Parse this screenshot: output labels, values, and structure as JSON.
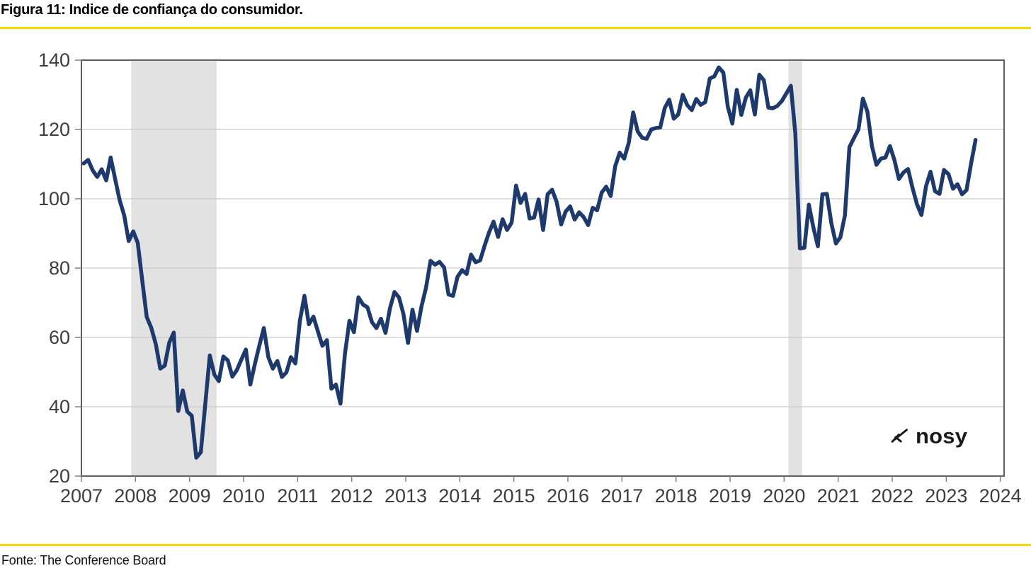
{
  "header": {
    "title": "Figura 11: Indice de confiança do consumidor."
  },
  "footer": {
    "source": "Fonte: The Conference Board"
  },
  "watermark": {
    "text": "nosy"
  },
  "colors": {
    "accent_yellow": "#ffd700",
    "line": "#1e3a6d",
    "recession_band": "#e2e2e2",
    "grid": "#c9c9c9",
    "plot_border": "#5f5f5f",
    "tick": "#7f7f7f",
    "axis_label": "#3d3d3d",
    "logo": "#191919"
  },
  "chart_data": {
    "type": "line",
    "title": "Figura 11: Indice de confiança do consumidor.",
    "source": "Fonte: The Conference Board",
    "xlabel": "",
    "ylabel": "",
    "ylim": [
      20,
      140
    ],
    "y_ticks": [
      20,
      40,
      60,
      80,
      100,
      120,
      140
    ],
    "x_ticks": [
      2007,
      2008,
      2009,
      2010,
      2011,
      2012,
      2013,
      2014,
      2015,
      2016,
      2017,
      2018,
      2019,
      2020,
      2021,
      2022,
      2023,
      2024
    ],
    "xlim": [
      2007,
      2024.07
    ],
    "grid": true,
    "legend_position": "none",
    "recession_bands": [
      {
        "from": 2007.92,
        "to": 2009.5
      },
      {
        "from": 2020.08,
        "to": 2020.33
      }
    ],
    "series": [
      {
        "name": "Indice de confiança do consumidor (The Conference Board)",
        "frequency": "monthly",
        "start_year": 2007,
        "start_month": 1,
        "values": [
          110.2,
          111.2,
          108.2,
          106.3,
          108.5,
          105.3,
          111.9,
          105.6,
          99.5,
          95.2,
          87.8,
          90.6,
          87.3,
          76.4,
          65.9,
          62.8,
          58.1,
          51.0,
          51.9,
          58.5,
          61.4,
          38.8,
          44.7,
          38.6,
          37.4,
          25.3,
          26.9,
          40.8,
          54.8,
          49.3,
          47.4,
          54.5,
          53.4,
          48.7,
          50.6,
          53.6,
          56.5,
          46.4,
          52.3,
          57.7,
          62.7,
          54.3,
          51.0,
          53.2,
          48.6,
          49.9,
          54.3,
          52.5,
          64.8,
          72.0,
          63.8,
          66.0,
          61.7,
          57.6,
          59.2,
          45.2,
          46.4,
          40.9,
          55.2,
          64.8,
          61.5,
          71.6,
          69.5,
          68.7,
          64.4,
          62.7,
          65.4,
          61.3,
          68.4,
          73.1,
          71.5,
          66.7,
          58.4,
          68.0,
          61.9,
          69.0,
          74.3,
          82.1,
          81.0,
          81.8,
          80.2,
          72.4,
          72.0,
          77.5,
          79.4,
          78.3,
          83.9,
          81.7,
          82.2,
          86.4,
          90.3,
          93.4,
          89.0,
          94.1,
          91.0,
          93.1,
          103.8,
          98.8,
          101.4,
          94.3,
          94.6,
          99.8,
          91.0,
          101.3,
          102.6,
          99.1,
          92.6,
          96.3,
          97.8,
          94.0,
          96.1,
          94.7,
          92.4,
          97.4,
          96.7,
          101.8,
          103.5,
          100.8,
          109.4,
          113.3,
          111.6,
          116.1,
          124.9,
          119.4,
          117.6,
          117.3,
          120.0,
          120.4,
          120.6,
          126.2,
          128.6,
          123.1,
          124.3,
          130.0,
          127.0,
          125.6,
          128.8,
          127.1,
          127.9,
          134.7,
          135.3,
          137.9,
          136.4,
          126.6,
          121.7,
          131.4,
          124.2,
          129.2,
          131.3,
          124.3,
          135.8,
          134.2,
          126.3,
          126.1,
          126.8,
          128.2,
          130.4,
          132.6,
          118.8,
          85.7,
          85.9,
          98.3,
          91.7,
          86.3,
          101.3,
          101.4,
          92.9,
          87.1,
          88.9,
          95.2,
          114.9,
          117.5,
          120.0,
          128.9,
          125.1,
          115.2,
          109.8,
          111.6,
          111.9,
          115.2,
          111.1,
          105.7,
          107.6,
          108.6,
          103.2,
          98.4,
          95.3,
          103.6,
          107.8,
          102.2,
          101.4,
          108.3,
          107.1,
          102.9,
          104.2,
          101.3,
          102.5,
          110.1,
          117.0
        ]
      }
    ]
  }
}
